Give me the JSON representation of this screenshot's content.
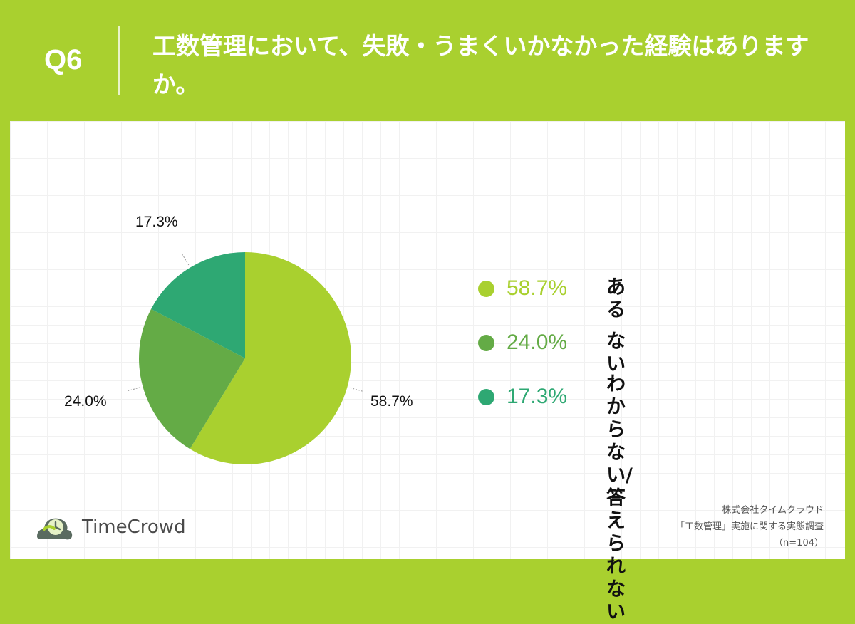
{
  "header": {
    "question_number": "Q6",
    "question_text": "工数管理において、失敗・うまくいかなかった経験はありますか。"
  },
  "chart_data": {
    "type": "pie",
    "slices": [
      {
        "label": "ある",
        "value": 58.7,
        "value_label": "58.7%",
        "color": "#a9d02f"
      },
      {
        "label": "ない",
        "value": 24.0,
        "value_label": "24.0%",
        "color": "#64ab46"
      },
      {
        "label": "わからない/\n答えられない",
        "value": 17.3,
        "value_label": "17.3%",
        "color": "#2ea873"
      }
    ]
  },
  "logo": {
    "text": "TimeCrowd"
  },
  "source": {
    "company": "株式会社タイムクラウド",
    "survey": "「工数管理」実施に関する実態調査",
    "sample": "（n=104）"
  }
}
